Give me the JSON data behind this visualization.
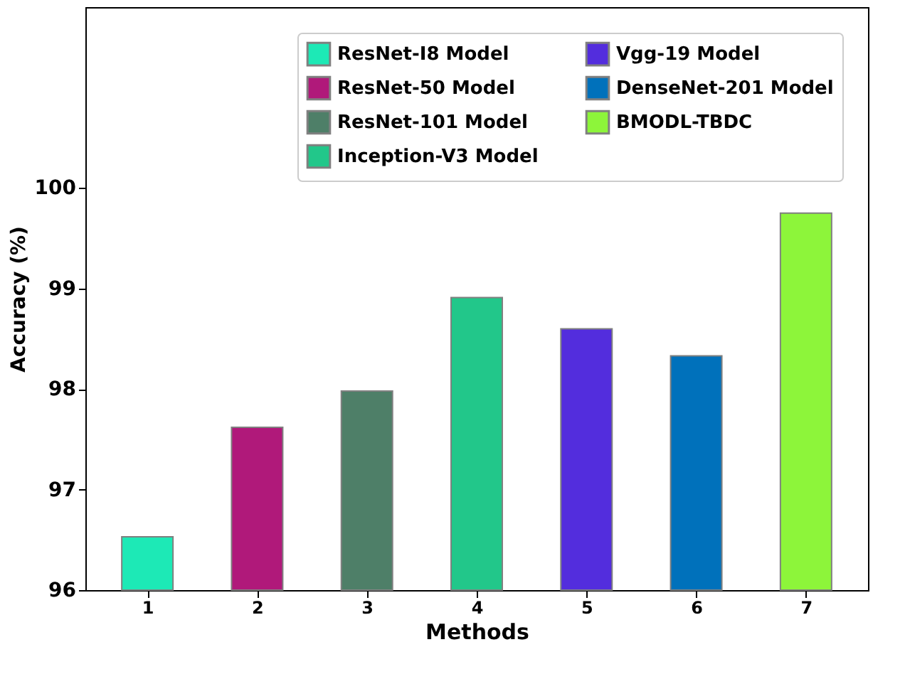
{
  "chart_data": {
    "type": "bar",
    "xlabel": "Methods",
    "ylabel": "Accuracy (%)",
    "categories": [
      "1",
      "2",
      "3",
      "4",
      "5",
      "6",
      "7"
    ],
    "series": [
      {
        "name": "ResNet-I8 Model",
        "color": "#1de9b6",
        "values": [
          96.53,
          null,
          null,
          null,
          null,
          null,
          null
        ]
      },
      {
        "name": "ResNet-50 Model",
        "color": "#b0197a",
        "values": [
          null,
          97.62,
          null,
          null,
          null,
          null,
          null
        ]
      },
      {
        "name": "ResNet-101 Model",
        "color": "#4e7f68",
        "values": [
          null,
          null,
          97.98,
          null,
          null,
          null,
          null
        ]
      },
      {
        "name": "Inception-V3 Model",
        "color": "#22c78a",
        "values": [
          null,
          null,
          null,
          98.91,
          null,
          null,
          null
        ]
      },
      {
        "name": "Vgg-19 Model",
        "color": "#532ddd",
        "values": [
          null,
          null,
          null,
          null,
          98.6,
          null,
          null
        ]
      },
      {
        "name": "DenseNet-201 Model",
        "color": "#0071bb",
        "values": [
          null,
          null,
          null,
          null,
          null,
          98.33,
          null
        ]
      },
      {
        "name": "BMODL-TBDC",
        "color": "#8df53a",
        "values": [
          null,
          null,
          null,
          null,
          null,
          null,
          99.75
        ]
      }
    ],
    "ylim": [
      96,
      101.8
    ],
    "yticks": [
      96,
      97,
      98,
      99,
      100
    ],
    "grid": false,
    "legend": "top right"
  }
}
